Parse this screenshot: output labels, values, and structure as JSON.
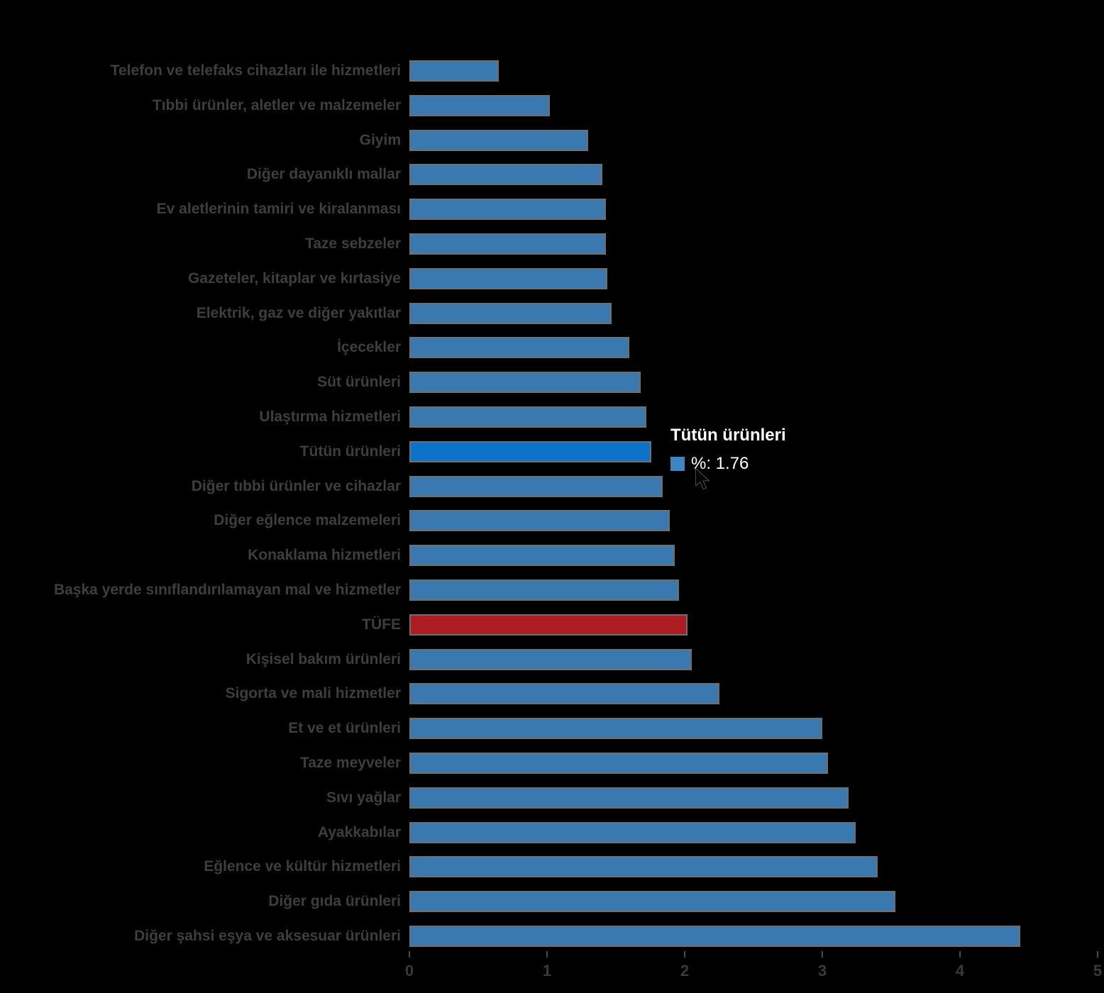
{
  "chart_data": {
    "type": "bar",
    "orientation": "horizontal",
    "title": "",
    "xlabel": "",
    "ylabel": "",
    "xlim": [
      0,
      5
    ],
    "x_ticks": [
      "0",
      "1",
      "2",
      "3",
      "4",
      "5"
    ],
    "grid": false,
    "legend_position": "none",
    "unit": "%",
    "categories": [
      "Telefon ve telefaks cihazları ile hizmetleri",
      "Tıbbi ürünler, aletler ve malzemeler",
      "Giyim",
      "Diğer dayanıklı mallar",
      "Ev aletlerinin tamiri ve kiralanması",
      "Taze sebzeler",
      "Gazeteler, kitaplar ve kırtasiye",
      "Elektrik, gaz ve diğer yakıtlar",
      "İçecekler",
      "Süt ürünleri",
      "Ulaştırma hizmetleri",
      "Tütün ürünleri",
      "Diğer tıbbi ürünler ve cihazlar",
      "Diğer eğlence malzemeleri",
      "Konaklama hizmetleri",
      "Başka yerde sınıflandırılamayan mal ve hizmetler",
      "TÜFE",
      "Kişisel bakım ürünleri",
      "Sigorta ve mali hizmetler",
      "Et ve et ürünleri",
      "Taze meyveler",
      "Sıvı yağlar",
      "Ayakkabılar",
      "Eğlence ve kültür hizmetleri",
      "Diğer gıda ürünleri",
      "Diğer şahsi eşya ve aksesuar ürünleri"
    ],
    "values": [
      0.65,
      1.02,
      1.3,
      1.4,
      1.43,
      1.43,
      1.44,
      1.47,
      1.6,
      1.68,
      1.72,
      1.76,
      1.84,
      1.89,
      1.93,
      1.96,
      2.02,
      2.05,
      2.25,
      3.0,
      3.04,
      3.19,
      3.24,
      3.4,
      3.53,
      4.44
    ],
    "highlighted_index": 11,
    "highlighted_label": "Tütün ürünleri",
    "highlighted_value": 1.76,
    "red_index": 16,
    "red_label": "TÜFE"
  },
  "tooltip": {
    "title": "Tütün ürünleri",
    "value_label": "%: 1.76"
  },
  "colors": {
    "background": "#000000",
    "bar_blue": "#3a79b0",
    "bar_highlight_blue": "#0d72c8",
    "bar_red": "#ad1c22",
    "bar_border": "#6f6f6f",
    "axis_text": "#3a3a3a",
    "tooltip_text": "#ffffff",
    "tooltip_swatch": "#3e86c2"
  }
}
